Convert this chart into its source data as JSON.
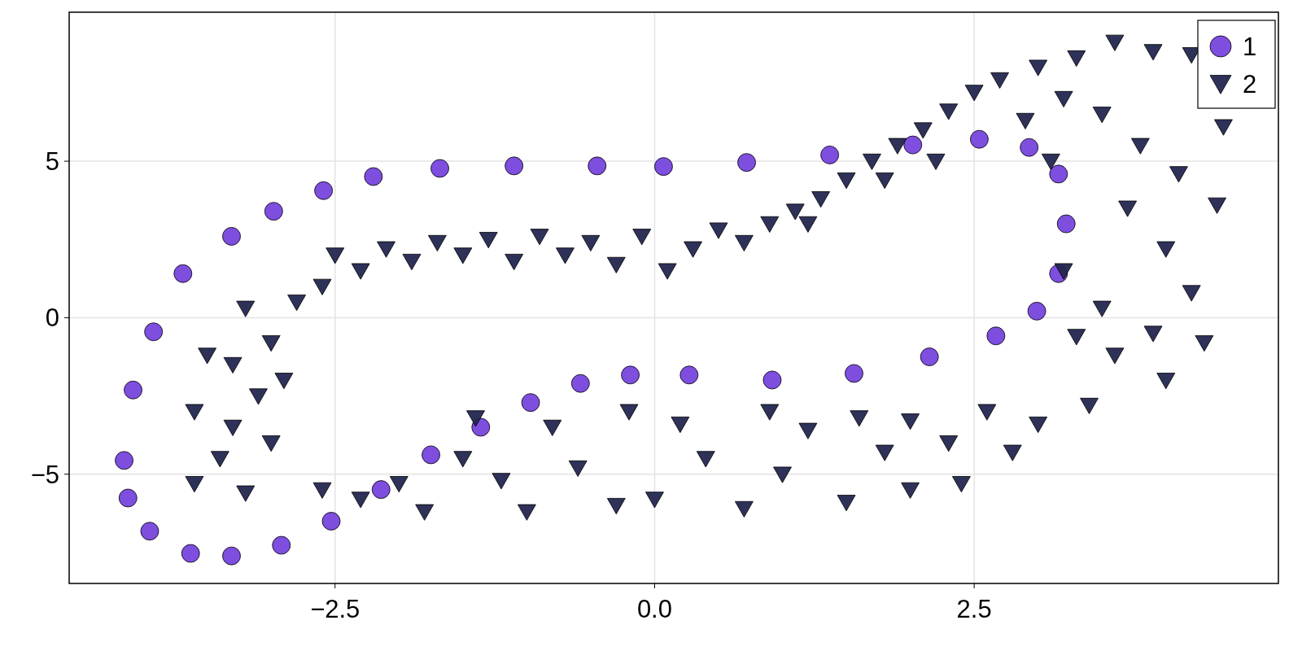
{
  "chart_data": {
    "type": "scatter",
    "xlim": [
      -4.58,
      4.88
    ],
    "ylim": [
      -8.49,
      9.76
    ],
    "xticks": [
      {
        "value": -2.5,
        "label": "−2.5"
      },
      {
        "value": 0,
        "label": "0.0"
      },
      {
        "value": 2.5,
        "label": "2.5"
      }
    ],
    "yticks": [
      {
        "value": -5,
        "label": "−5"
      },
      {
        "value": 0,
        "label": "0"
      },
      {
        "value": 5,
        "label": "5"
      }
    ],
    "grid": true,
    "legend": "top right",
    "series": [
      {
        "name": "1",
        "color": "#7744dd",
        "marker": "circle",
        "x": [
          -4.15,
          -4.08,
          -3.92,
          -3.69,
          -3.31,
          -2.98,
          -2.59,
          -2.2,
          -1.68,
          -1.1,
          -0.45,
          0.07,
          0.72,
          1.37,
          2.02,
          2.54,
          2.93,
          3.16,
          3.22,
          3.16,
          2.99,
          2.67,
          2.15,
          1.56,
          0.92,
          0.27,
          -0.19,
          -0.58,
          -0.97,
          -1.36,
          -1.75,
          -2.14,
          -2.53,
          -2.92,
          -3.31,
          -3.63,
          -3.95,
          -4.12
        ],
        "values": [
          -4.56,
          -2.31,
          -0.45,
          1.41,
          2.6,
          3.4,
          4.06,
          4.51,
          4.77,
          4.85,
          4.85,
          4.83,
          4.96,
          5.2,
          5.52,
          5.7,
          5.44,
          4.59,
          3.0,
          1.41,
          0.21,
          -0.58,
          -1.25,
          -1.78,
          -1.99,
          -1.83,
          -1.83,
          -2.1,
          -2.71,
          -3.5,
          -4.38,
          -5.49,
          -6.5,
          -7.27,
          -7.61,
          -7.53,
          -6.82,
          -5.76
        ]
      },
      {
        "name": "2",
        "color": "#23264f",
        "marker": "triangle",
        "x": [
          -3.6,
          -3.5,
          -3.3,
          -3.4,
          -3.6,
          -3.2,
          -3.0,
          -3.1,
          -3.3,
          -3.0,
          -3.2,
          -2.9,
          -2.8,
          -2.6,
          -2.5,
          -2.3,
          -2.1,
          -1.9,
          -1.7,
          -1.5,
          -1.3,
          -1.1,
          -0.9,
          -0.7,
          -0.5,
          -0.3,
          -0.1,
          0.1,
          0.3,
          0.5,
          0.7,
          0.9,
          1.1,
          1.3,
          1.5,
          1.7,
          1.9,
          2.1,
          2.3,
          2.5,
          2.7,
          1.8,
          2.2,
          1.2,
          3.0,
          3.3,
          3.6,
          3.9,
          4.2,
          4.45,
          3.2,
          3.5,
          3.8,
          4.1,
          4.4,
          3.7,
          4.0,
          4.2,
          3.9,
          4.3,
          3.6,
          4.0,
          3.4,
          3.0,
          2.8,
          2.4,
          2.0,
          3.2,
          3.5,
          3.3,
          2.9,
          3.1,
          -2.6,
          -2.3,
          -2.0,
          -1.8,
          -1.5,
          -1.2,
          -1.0,
          -0.8,
          -0.6,
          -0.3,
          0.0,
          0.2,
          0.4,
          0.7,
          1.0,
          1.2,
          1.5,
          1.8,
          2.0,
          2.3,
          2.6,
          0.9,
          -0.2,
          -1.4,
          1.6
        ],
        "values": [
          -3.0,
          -1.2,
          -1.5,
          -4.5,
          -5.3,
          -5.6,
          -4.0,
          -2.5,
          -3.5,
          -0.8,
          0.3,
          -2.0,
          0.5,
          1.0,
          2.0,
          1.5,
          2.2,
          1.8,
          2.4,
          2.0,
          2.5,
          1.8,
          2.6,
          2.0,
          2.4,
          1.7,
          2.6,
          1.5,
          2.2,
          2.8,
          2.4,
          3.0,
          3.4,
          3.8,
          4.4,
          5.0,
          5.5,
          6.0,
          6.6,
          7.2,
          7.6,
          4.4,
          5.0,
          3.0,
          8.0,
          8.3,
          8.8,
          8.5,
          8.4,
          6.1,
          7.0,
          6.5,
          5.5,
          4.6,
          3.6,
          3.5,
          2.2,
          0.8,
          -0.5,
          -0.8,
          -1.2,
          -2.0,
          -2.8,
          -3.4,
          -4.3,
          -5.3,
          -5.5,
          1.5,
          0.3,
          -0.6,
          6.3,
          5.0,
          -5.5,
          -5.8,
          -5.3,
          -6.2,
          -4.5,
          -5.2,
          -6.2,
          -3.5,
          -4.8,
          -6.0,
          -5.8,
          -3.4,
          -4.5,
          -6.1,
          -5.0,
          -3.6,
          -5.9,
          -4.3,
          -3.3,
          -4.0,
          -3.0,
          -3.0,
          -3.0,
          -3.2,
          -3.2
        ]
      }
    ]
  }
}
